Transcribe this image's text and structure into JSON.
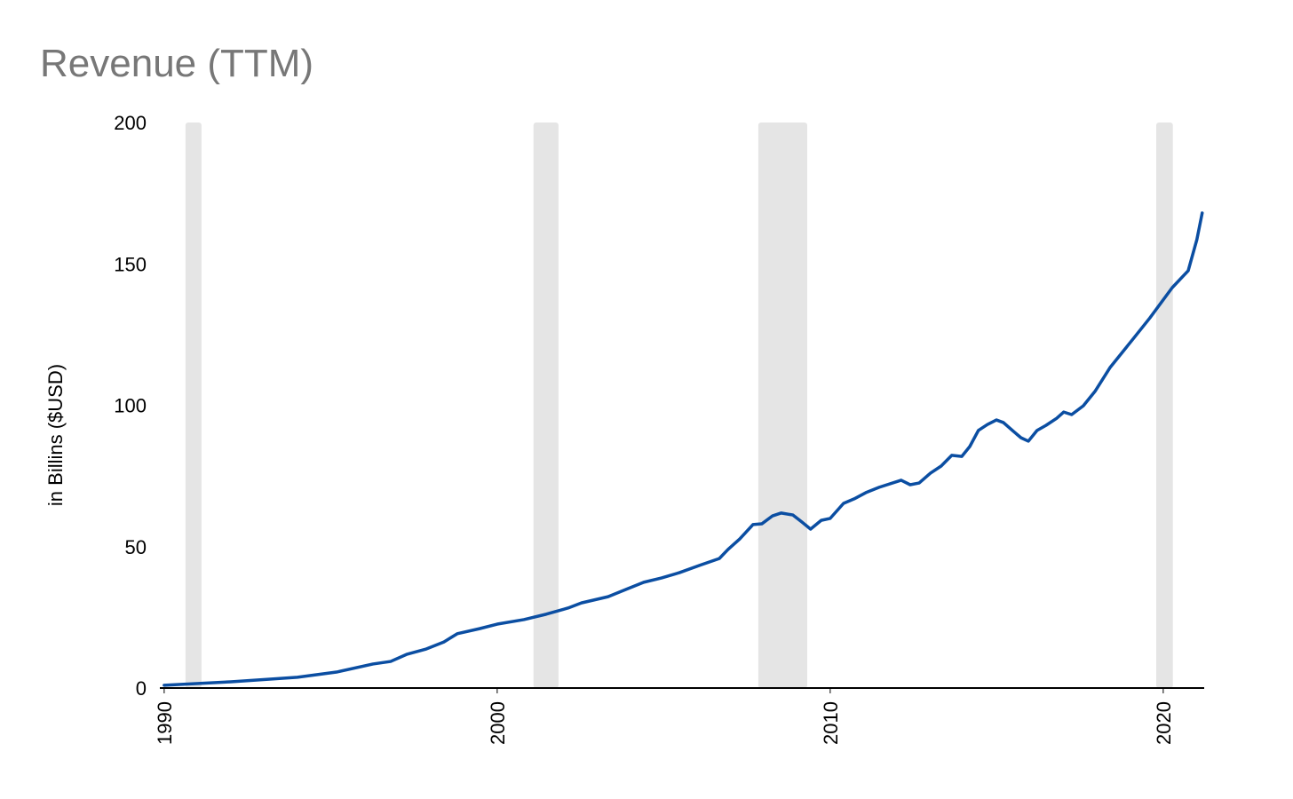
{
  "chart_data": {
    "type": "line",
    "title": "Revenue (TTM)",
    "y_label": "in Billins ($USD)",
    "color": "#0b4ea2",
    "band_color": "#e5e5e5",
    "x": [
      1990.0,
      1992.0,
      1994.0,
      1995.2,
      1996.27,
      1996.8,
      1997.28,
      1997.87,
      1998.4,
      1998.8,
      1999.47,
      2000.0,
      2000.8,
      2001.47,
      2002.13,
      2002.53,
      2003.33,
      2003.87,
      2004.4,
      2004.93,
      2005.47,
      2006.13,
      2006.67,
      2006.93,
      2007.28,
      2007.68,
      2007.95,
      2008.27,
      2008.53,
      2008.88,
      2009.15,
      2009.41,
      2009.73,
      2010.0,
      2010.4,
      2010.72,
      2011.07,
      2011.47,
      2012.13,
      2012.4,
      2012.67,
      2013.01,
      2013.33,
      2013.65,
      2013.95,
      2014.19,
      2014.45,
      2014.72,
      2014.99,
      2015.2,
      2015.47,
      2015.73,
      2015.95,
      2016.21,
      2016.48,
      2016.8,
      2017.01,
      2017.25,
      2017.6,
      2017.95,
      2018.4,
      2019.07,
      2019.6,
      2020.27,
      2020.75,
      2021.01,
      2021.17
    ],
    "values": [
      1.0,
      2.2,
      3.8,
      5.7,
      8.5,
      9.4,
      11.9,
      13.8,
      16.3,
      19.2,
      21.0,
      22.6,
      24.2,
      26.1,
      28.3,
      30.1,
      32.3,
      34.9,
      37.4,
      38.9,
      40.8,
      43.6,
      45.8,
      49.0,
      52.7,
      57.8,
      58.1,
      60.9,
      61.9,
      61.2,
      58.7,
      56.2,
      59.3,
      60.0,
      65.3,
      66.9,
      69.1,
      71.0,
      73.5,
      71.9,
      72.5,
      76.0,
      78.5,
      82.3,
      81.9,
      85.4,
      91.1,
      93.2,
      94.8,
      93.9,
      91.1,
      88.5,
      87.3,
      91.1,
      92.9,
      95.4,
      97.6,
      96.7,
      99.8,
      104.9,
      113.3,
      123.1,
      130.9,
      141.6,
      147.6,
      158.6,
      168.0
    ],
    "recessions": [
      [
        1990.64,
        1991.12
      ],
      [
        2001.09,
        2001.84
      ],
      [
        2007.84,
        2009.31
      ],
      [
        2019.79,
        2020.29
      ]
    ],
    "xlim": [
      1989.87,
      2021.23
    ],
    "xticks": [
      1990,
      2000,
      2010,
      2020
    ],
    "ylim": [
      0,
      200
    ],
    "yticks": [
      0,
      50,
      100,
      150,
      200
    ]
  }
}
